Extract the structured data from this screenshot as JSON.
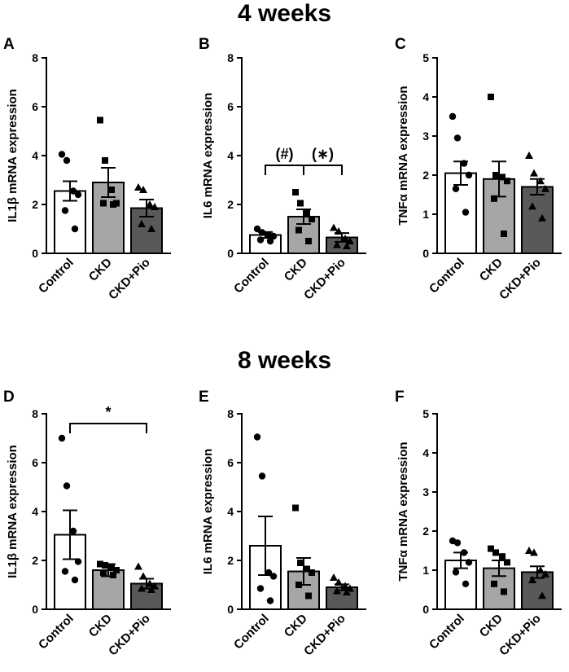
{
  "sections": [
    {
      "title": "4 weeks"
    },
    {
      "title": "8 weeks"
    }
  ],
  "colors": {
    "control": "#ffffff",
    "ckd": "#a6a6a6",
    "ckdpio": "#595959",
    "ink": "#000000"
  },
  "chart_data": [
    {
      "letter": "A",
      "type": "bar",
      "ylabel": "IL1β mRNA expression",
      "categories": [
        "Control",
        "CKD",
        "CKD+Pio"
      ],
      "ylim": [
        0,
        8
      ],
      "yticks": [
        0,
        2,
        4,
        6,
        8
      ],
      "values": [
        2.55,
        2.9,
        1.85
      ],
      "sem": [
        0.4,
        0.6,
        0.35
      ],
      "points": [
        [
          4.05,
          3.8,
          2.55,
          2.4,
          1.75,
          1.0
        ],
        [
          5.45,
          3.8,
          2.6,
          2.05,
          2.05,
          2.0
        ],
        [
          2.7,
          2.6,
          2.0,
          1.9,
          1.2,
          1.0
        ]
      ],
      "annotations": []
    },
    {
      "letter": "B",
      "type": "bar",
      "ylabel": "IL6 mRNA expression",
      "categories": [
        "Control",
        "CKD",
        "CKD+Pio"
      ],
      "ylim": [
        0,
        8
      ],
      "yticks": [
        0,
        2,
        4,
        6,
        8
      ],
      "values": [
        0.75,
        1.5,
        0.65
      ],
      "sem": [
        0.12,
        0.3,
        0.18
      ],
      "points": [
        [
          1.0,
          0.85,
          0.75,
          0.7,
          0.55,
          0.5
        ],
        [
          2.5,
          2.05,
          1.65,
          1.4,
          0.95,
          0.5
        ],
        [
          1.05,
          0.9,
          0.6,
          0.5,
          0.35,
          0.3
        ]
      ],
      "annotations": [
        {
          "from": 0,
          "to": 1,
          "y": 3.6,
          "label": "(#)"
        },
        {
          "from": 1,
          "to": 2,
          "y": 3.6,
          "label": "(∗)"
        }
      ]
    },
    {
      "letter": "C",
      "type": "bar",
      "ylabel": "TNFα mRNA expression",
      "categories": [
        "Control",
        "CKD",
        "CKD+Pio"
      ],
      "ylim": [
        0,
        5
      ],
      "yticks": [
        0,
        1,
        2,
        3,
        4,
        5
      ],
      "values": [
        2.05,
        1.9,
        1.7
      ],
      "sem": [
        0.3,
        0.45,
        0.2
      ],
      "points": [
        [
          3.5,
          2.95,
          2.3,
          2.0,
          1.65,
          1.05
        ],
        [
          4.0,
          2.0,
          1.95,
          1.85,
          1.4,
          0.5
        ],
        [
          2.5,
          2.05,
          1.85,
          1.65,
          1.2,
          0.9
        ]
      ],
      "annotations": []
    },
    {
      "letter": "D",
      "type": "bar",
      "ylabel": "IL1β mRNA expression",
      "categories": [
        "Control",
        "CKD",
        "CKD+Pio"
      ],
      "ylim": [
        0,
        8
      ],
      "yticks": [
        0,
        2,
        4,
        6,
        8
      ],
      "values": [
        3.05,
        1.6,
        1.05
      ],
      "sem": [
        1.0,
        0.25,
        0.2
      ],
      "points": [
        [
          7.0,
          5.05,
          3.2,
          1.95,
          1.55,
          1.2
        ],
        [
          1.85,
          1.8,
          1.75,
          1.6,
          1.5,
          1.4
        ],
        [
          1.75,
          1.35,
          1.05,
          0.95,
          0.85,
          0.8
        ]
      ],
      "annotations": [
        {
          "from": 0,
          "to": 2,
          "y": 7.6,
          "label": "*"
        }
      ]
    },
    {
      "letter": "E",
      "type": "bar",
      "ylabel": "IL6 mRNA expression",
      "categories": [
        "Control",
        "CKD",
        "CKD+Pio"
      ],
      "ylim": [
        0,
        8
      ],
      "yticks": [
        0,
        2,
        4,
        6,
        8
      ],
      "values": [
        2.6,
        1.55,
        0.9
      ],
      "sem": [
        1.2,
        0.55,
        0.12
      ],
      "points": [
        [
          7.05,
          5.45,
          1.5,
          1.35,
          0.85,
          0.35
        ],
        [
          4.15,
          1.9,
          1.65,
          1.5,
          1.0,
          0.55
        ],
        [
          1.3,
          1.1,
          0.95,
          0.85,
          0.75,
          0.7
        ]
      ],
      "annotations": []
    },
    {
      "letter": "F",
      "type": "bar",
      "ylabel": "TNFα mRNA expression",
      "categories": [
        "Control",
        "CKD",
        "CKD+Pio"
      ],
      "ylim": [
        0,
        5
      ],
      "yticks": [
        0,
        1,
        2,
        3,
        4,
        5
      ],
      "values": [
        1.25,
        1.05,
        0.95
      ],
      "sem": [
        0.2,
        0.2,
        0.15
      ],
      "points": [
        [
          1.75,
          1.7,
          1.45,
          1.2,
          0.95,
          0.65
        ],
        [
          1.55,
          1.45,
          1.35,
          1.2,
          0.65,
          0.45
        ],
        [
          1.5,
          1.45,
          1.0,
          0.9,
          0.75,
          0.35
        ]
      ],
      "annotations": []
    }
  ]
}
